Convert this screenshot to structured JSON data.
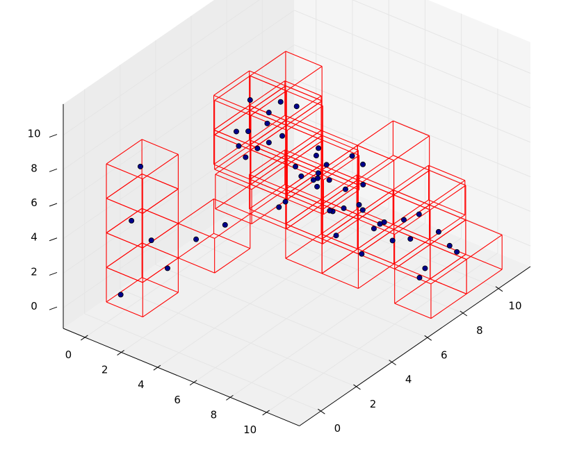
{
  "chart_data": {
    "type": "scatter",
    "projection": "3d",
    "title": "",
    "xlabel": "",
    "ylabel": "",
    "zlabel": "",
    "xlim": [
      -1.2,
      11.8
    ],
    "ylim": [
      -1.2,
      11.8
    ],
    "zlim": [
      -1.2,
      11.8
    ],
    "xticks": [
      0,
      2,
      4,
      6,
      8,
      10
    ],
    "yticks": [
      0,
      2,
      4,
      6,
      8,
      10
    ],
    "zticks": [
      0,
      2,
      4,
      6,
      8,
      10
    ],
    "grid": true,
    "colors": {
      "points_fill": "#00008b",
      "points_edge": "#000000",
      "cubes": "#ff0000",
      "pane": "#f2f2f2",
      "grid": "#e5e5e5"
    },
    "series": [
      {
        "type": "scatter",
        "points": [
          [
            0.3,
            0.5,
            0.2
          ],
          [
            0.6,
            0.8,
            4.4
          ],
          [
            1.8,
            1.6,
            1.6
          ],
          [
            1.4,
            1.1,
            3.4
          ],
          [
            2.2,
            2.8,
            2.6
          ],
          [
            3.6,
            3.0,
            3.9
          ],
          [
            0.7,
            1.2,
            7.3
          ],
          [
            2.0,
            7.1,
            6.8
          ],
          [
            2.4,
            6.6,
            6.7
          ],
          [
            2.2,
            5.2,
            6.3
          ],
          [
            3.6,
            4.3,
            8.4
          ],
          [
            4.6,
            3.8,
            8.2
          ],
          [
            4.4,
            5.4,
            7.7
          ],
          [
            5.0,
            4.6,
            4.4
          ],
          [
            4.2,
            7.6,
            3.6
          ],
          [
            5.0,
            6.7,
            5.9
          ],
          [
            5.6,
            6.2,
            5.5
          ],
          [
            4.0,
            4.0,
            10.6
          ],
          [
            5.1,
            2.1,
            10.6
          ],
          [
            4.8,
            4.9,
            10.2
          ],
          [
            6.6,
            2.4,
            10.4
          ],
          [
            6.3,
            4.2,
            7.6
          ],
          [
            6.0,
            5.8,
            7.4
          ],
          [
            6.0,
            7.7,
            5.6
          ],
          [
            7.2,
            6.0,
            4.3
          ],
          [
            6.1,
            8.2,
            4.8
          ],
          [
            6.6,
            7.7,
            4.2
          ],
          [
            6.9,
            4.6,
            6.8
          ],
          [
            7.5,
            3.3,
            8.2
          ],
          [
            7.1,
            4.6,
            6.5
          ],
          [
            6.5,
            5.9,
            5.7
          ],
          [
            7.0,
            6.3,
            5.1
          ],
          [
            6.2,
            6.4,
            3.4
          ],
          [
            7.6,
            6.6,
            1.4
          ],
          [
            6.1,
            9.4,
            0.6
          ],
          [
            7.1,
            7.8,
            1.8
          ],
          [
            5.7,
            8.6,
            1.7
          ],
          [
            8.8,
            6.4,
            3.8
          ],
          [
            9.2,
            6.7,
            2.8
          ],
          [
            9.3,
            7.6,
            2.3
          ],
          [
            8.8,
            9.7,
            1.0
          ],
          [
            9.7,
            9.4,
            0.8
          ],
          [
            10.5,
            7.2,
            1.4
          ],
          [
            6.4,
            10.2,
            0.3
          ],
          [
            5.4,
            8.7,
            1.8
          ],
          [
            10.0,
            7.4,
            0.5
          ],
          [
            10.0,
            9.5,
            0.5
          ],
          [
            5.8,
            7.0,
            1.4
          ],
          [
            3.4,
            6.6,
            2.6
          ],
          [
            7.7,
            4.7,
            5.3
          ],
          [
            4.8,
            5.8,
            9.3
          ],
          [
            6.1,
            1.6,
            9.9
          ],
          [
            8.4,
            3.8,
            8.9
          ],
          [
            8.8,
            8.6,
            2.8
          ]
        ]
      }
    ]
  }
}
